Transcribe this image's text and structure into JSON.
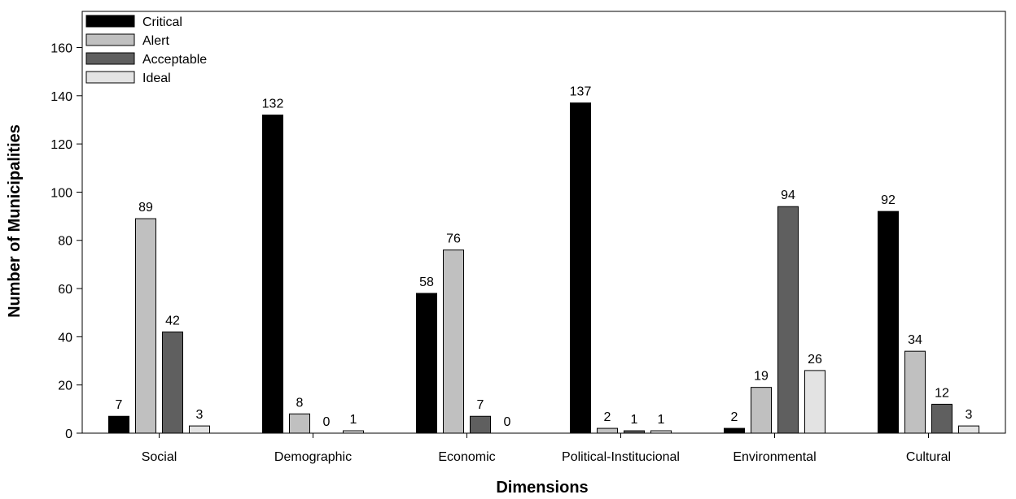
{
  "chart_data": {
    "type": "bar",
    "title": "",
    "xlabel": "Dimensions",
    "ylabel": "Number of Municipalities",
    "ylim": [
      0,
      175
    ],
    "yticks": [
      0,
      20,
      40,
      60,
      80,
      100,
      120,
      140,
      160
    ],
    "grid": false,
    "legend_position": "top-left",
    "categories": [
      "Social",
      "Demographic",
      "Economic",
      "Political-Institucional",
      "Environmental",
      "Cultural"
    ],
    "series": [
      {
        "name": "Critical",
        "color": "#000000",
        "values": [
          7,
          132,
          58,
          137,
          2,
          92
        ]
      },
      {
        "name": "Alert",
        "color": "#c0c0c0",
        "values": [
          89,
          8,
          76,
          2,
          19,
          34
        ]
      },
      {
        "name": "Acceptable",
        "color": "#5f5f5f",
        "values": [
          42,
          0,
          7,
          1,
          94,
          12
        ]
      },
      {
        "name": "Ideal",
        "color": "#e3e3e3",
        "values": [
          3,
          1,
          0,
          1,
          26,
          3
        ]
      }
    ]
  }
}
